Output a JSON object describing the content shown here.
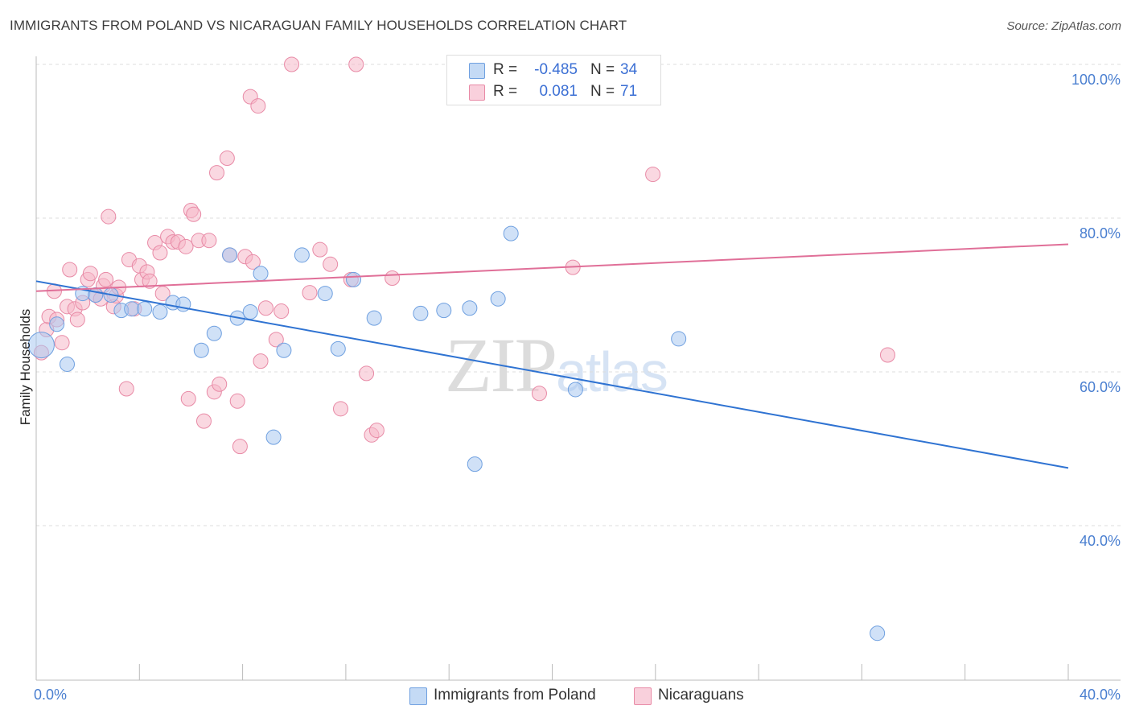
{
  "title": "IMMIGRANTS FROM POLAND VS NICARAGUAN FAMILY HOUSEHOLDS CORRELATION CHART",
  "source": "Source: ZipAtlas.com",
  "watermark": {
    "zip": "ZIP",
    "atlas": "atlas"
  },
  "legend": {
    "rows": [
      {
        "r_label": "R =",
        "r_value": "-0.485",
        "n_label": "N =",
        "n_value": "34",
        "color": "#a9c8f0"
      },
      {
        "r_label": "R =",
        "r_value": "0.081",
        "n_label": "N =",
        "n_value": "71",
        "color": "#f5b8c8"
      }
    ]
  },
  "bottom_legend": [
    {
      "label": "Immigrants from Poland",
      "color": "#a9c8f0"
    },
    {
      "label": "Nicaraguans",
      "color": "#f5b8c8"
    }
  ],
  "chart_data": {
    "type": "scatter",
    "title": "IMMIGRANTS FROM POLAND VS NICARAGUAN FAMILY HOUSEHOLDS CORRELATION CHART",
    "xlabel": "",
    "ylabel": "Family Households",
    "xlim": [
      0,
      40
    ],
    "ylim": [
      22,
      102
    ],
    "x_tick_labels": [
      "0.0%",
      "40.0%"
    ],
    "y_ticks": [
      40,
      60,
      80,
      100
    ],
    "y_tick_labels": [
      "40.0%",
      "60.0%",
      "80.0%",
      "100.0%"
    ],
    "grid": true,
    "legend_position": "top-center",
    "series": [
      {
        "name": "Immigrants from Poland",
        "color": "#6fa0e0",
        "fill": "#a9c8f0",
        "trend": {
          "x": [
            0,
            40
          ],
          "y": [
            71.8,
            47.5
          ],
          "color": "#2f73d2"
        },
        "points": [
          [
            0.2,
            63.5
          ],
          [
            0.8,
            66.2
          ],
          [
            1.2,
            61.0
          ],
          [
            1.8,
            70.2
          ],
          [
            2.3,
            70.0
          ],
          [
            2.9,
            70.0
          ],
          [
            3.3,
            68.0
          ],
          [
            3.7,
            68.2
          ],
          [
            4.2,
            68.2
          ],
          [
            4.8,
            67.8
          ],
          [
            5.3,
            69.0
          ],
          [
            5.7,
            68.8
          ],
          [
            6.4,
            62.8
          ],
          [
            6.9,
            65.0
          ],
          [
            7.5,
            75.2
          ],
          [
            7.8,
            67.0
          ],
          [
            8.3,
            67.8
          ],
          [
            8.7,
            72.8
          ],
          [
            9.2,
            51.5
          ],
          [
            9.6,
            62.8
          ],
          [
            10.3,
            75.2
          ],
          [
            11.2,
            70.2
          ],
          [
            11.7,
            63.0
          ],
          [
            12.3,
            72.0
          ],
          [
            13.1,
            67.0
          ],
          [
            14.9,
            67.6
          ],
          [
            15.8,
            68.0
          ],
          [
            16.8,
            68.3
          ],
          [
            17.0,
            48.0
          ],
          [
            17.9,
            69.5
          ],
          [
            18.4,
            78.0
          ],
          [
            20.9,
            57.7
          ],
          [
            24.9,
            64.3
          ],
          [
            32.6,
            26.0
          ]
        ]
      },
      {
        "name": "Nicaraguans",
        "color": "#e88aa6",
        "fill": "#f5b8c8",
        "trend": {
          "x": [
            0,
            40
          ],
          "y": [
            70.5,
            76.6
          ],
          "color": "#e06f98"
        },
        "points": [
          [
            0.2,
            62.5
          ],
          [
            0.4,
            65.5
          ],
          [
            0.5,
            67.2
          ],
          [
            0.7,
            70.5
          ],
          [
            0.8,
            66.8
          ],
          [
            1.0,
            63.8
          ],
          [
            1.2,
            68.5
          ],
          [
            1.3,
            73.3
          ],
          [
            1.5,
            68.2
          ],
          [
            1.6,
            66.8
          ],
          [
            1.8,
            69.0
          ],
          [
            2.0,
            72.0
          ],
          [
            2.1,
            72.8
          ],
          [
            2.3,
            70.0
          ],
          [
            2.5,
            69.5
          ],
          [
            2.6,
            71.2
          ],
          [
            2.7,
            72.0
          ],
          [
            2.8,
            80.2
          ],
          [
            3.0,
            68.5
          ],
          [
            3.1,
            69.9
          ],
          [
            3.2,
            71.0
          ],
          [
            3.5,
            57.8
          ],
          [
            3.6,
            74.6
          ],
          [
            3.8,
            68.2
          ],
          [
            4.0,
            73.8
          ],
          [
            4.1,
            72.0
          ],
          [
            4.3,
            73.0
          ],
          [
            4.4,
            71.8
          ],
          [
            4.6,
            76.8
          ],
          [
            4.8,
            75.5
          ],
          [
            4.9,
            70.2
          ],
          [
            5.1,
            77.6
          ],
          [
            5.3,
            76.9
          ],
          [
            5.5,
            76.9
          ],
          [
            5.8,
            76.3
          ],
          [
            5.9,
            56.5
          ],
          [
            6.0,
            81.0
          ],
          [
            6.1,
            80.5
          ],
          [
            6.3,
            77.1
          ],
          [
            6.5,
            53.6
          ],
          [
            6.7,
            77.1
          ],
          [
            6.9,
            57.4
          ],
          [
            7.0,
            85.9
          ],
          [
            7.1,
            58.4
          ],
          [
            7.4,
            87.8
          ],
          [
            7.5,
            75.2
          ],
          [
            7.8,
            56.2
          ],
          [
            7.9,
            50.3
          ],
          [
            8.1,
            75.0
          ],
          [
            8.3,
            95.8
          ],
          [
            8.4,
            74.3
          ],
          [
            8.6,
            94.6
          ],
          [
            8.7,
            61.4
          ],
          [
            8.9,
            68.3
          ],
          [
            9.3,
            64.2
          ],
          [
            9.5,
            67.9
          ],
          [
            9.9,
            100.0
          ],
          [
            10.6,
            70.3
          ],
          [
            11.0,
            75.9
          ],
          [
            11.4,
            74.0
          ],
          [
            11.8,
            55.2
          ],
          [
            12.2,
            72.0
          ],
          [
            12.4,
            100.0
          ],
          [
            12.8,
            59.8
          ],
          [
            13.0,
            51.8
          ],
          [
            13.2,
            52.4
          ],
          [
            13.8,
            72.2
          ],
          [
            19.5,
            57.2
          ],
          [
            20.8,
            73.6
          ],
          [
            23.9,
            85.7
          ],
          [
            33.0,
            62.2
          ]
        ]
      }
    ]
  }
}
